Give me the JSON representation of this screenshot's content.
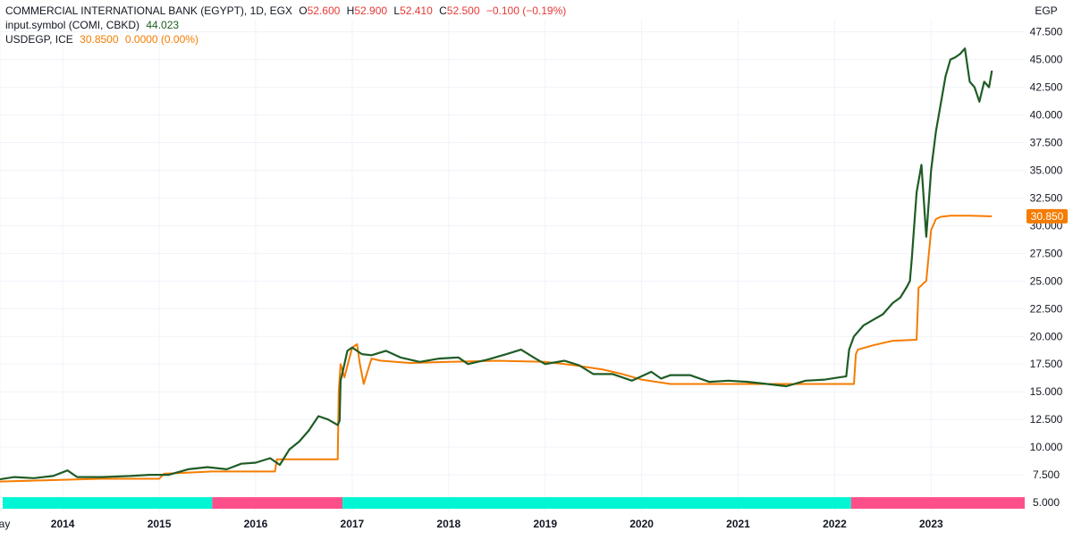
{
  "legend": {
    "line1": {
      "name": "COMMERCIAL INTERNATIONAL BANK (EGYPT), 1D, EGX",
      "o_label": "O",
      "o_value": "52.600",
      "h_label": "H",
      "h_value": "52.900",
      "l_label": "L",
      "l_value": "52.410",
      "c_label": "C",
      "c_value": "52.500",
      "change": "−0.100 (−0.19%)"
    },
    "line2": {
      "name": "input.symbol (COMI, CBKD)",
      "value": "44.023"
    },
    "line3": {
      "name": "USDEGP, ICE",
      "value": "30.8500",
      "change": "0.0000 (0.00%)"
    }
  },
  "price_tag": "30.850",
  "colors": {
    "green_series": "#1f5c25",
    "orange_series": "#f57c00",
    "band_cyan": "#00f5d4",
    "band_pink": "#ff4f8b",
    "tag_bg": "#f57c00"
  },
  "chart_data": {
    "type": "line",
    "unit_label": "EGP",
    "ylim": [
      4.2,
      48.6
    ],
    "xlim": [
      2013.35,
      2023.97
    ],
    "y_ticks": [
      "47.500",
      "45.000",
      "42.500",
      "40.000",
      "37.500",
      "35.000",
      "32.500",
      "30.000",
      "27.500",
      "25.000",
      "22.500",
      "20.000",
      "17.500",
      "15.000",
      "12.500",
      "10.000",
      "7.500",
      "5.000"
    ],
    "x_ticks": [
      {
        "label": "May",
        "x": 2013.35
      },
      {
        "label": "2014",
        "x": 2014.0
      },
      {
        "label": "2015",
        "x": 2015.0
      },
      {
        "label": "2016",
        "x": 2016.0
      },
      {
        "label": "2017",
        "x": 2017.0
      },
      {
        "label": "2018",
        "x": 2018.0
      },
      {
        "label": "2019",
        "x": 2019.0
      },
      {
        "label": "2020",
        "x": 2020.0
      },
      {
        "label": "2021",
        "x": 2021.0
      },
      {
        "label": "2022",
        "x": 2022.0
      },
      {
        "label": "2023",
        "x": 2023.0
      }
    ],
    "series": [
      {
        "name": "input.symbol (COMI, CBKD)",
        "x": [
          2013.35,
          2013.5,
          2013.7,
          2013.9,
          2014.05,
          2014.15,
          2014.4,
          2014.7,
          2014.9,
          2015.1,
          2015.3,
          2015.5,
          2015.7,
          2015.85,
          2016.0,
          2016.15,
          2016.25,
          2016.35,
          2016.45,
          2016.55,
          2016.65,
          2016.75,
          2016.85,
          2016.87,
          2016.88,
          2016.92,
          2016.95,
          2017.0,
          2017.1,
          2017.2,
          2017.35,
          2017.5,
          2017.7,
          2017.9,
          2018.1,
          2018.2,
          2018.4,
          2018.6,
          2018.75,
          2018.9,
          2019.0,
          2019.2,
          2019.35,
          2019.5,
          2019.7,
          2019.9,
          2020.1,
          2020.2,
          2020.3,
          2020.5,
          2020.7,
          2020.9,
          2021.1,
          2021.3,
          2021.5,
          2021.7,
          2021.9,
          2022.05,
          2022.12,
          2022.15,
          2022.2,
          2022.3,
          2022.4,
          2022.5,
          2022.6,
          2022.68,
          2022.75,
          2022.78,
          2022.8,
          2022.85,
          2022.9,
          2022.95,
          2023.0,
          2023.05,
          2023.1,
          2023.15,
          2023.2,
          2023.25,
          2023.3,
          2023.35,
          2023.4,
          2023.45,
          2023.5,
          2023.55,
          2023.6,
          2023.63
        ],
        "y": [
          7.1,
          7.3,
          7.2,
          7.4,
          7.9,
          7.3,
          7.3,
          7.4,
          7.5,
          7.5,
          8.0,
          8.2,
          8.0,
          8.5,
          8.6,
          9.0,
          8.4,
          9.8,
          10.5,
          11.5,
          12.8,
          12.5,
          12.0,
          12.4,
          16.0,
          17.5,
          18.7,
          19.0,
          18.4,
          18.3,
          18.7,
          18.1,
          17.7,
          18.0,
          18.1,
          17.5,
          17.9,
          18.4,
          18.8,
          18.0,
          17.5,
          17.8,
          17.4,
          16.6,
          16.6,
          16.0,
          16.8,
          16.2,
          16.5,
          16.5,
          15.9,
          16.0,
          15.9,
          15.7,
          15.5,
          16.0,
          16.1,
          16.3,
          16.4,
          18.8,
          20.0,
          21.0,
          21.5,
          22.0,
          23.0,
          23.5,
          24.5,
          25.0,
          27.0,
          33.0,
          35.5,
          29.0,
          35.0,
          38.5,
          41.0,
          43.5,
          45.0,
          45.2,
          45.5,
          46.0,
          43.0,
          42.5,
          41.2,
          43.0,
          42.5,
          44.0
        ]
      },
      {
        "name": "USDEGP, ICE",
        "x": [
          2013.35,
          2013.8,
          2014.4,
          2014.6,
          2015.0,
          2015.05,
          2015.55,
          2015.6,
          2016.0,
          2016.2,
          2016.22,
          2016.85,
          2016.86,
          2016.88,
          2016.92,
          2016.97,
          2017.0,
          2017.05,
          2017.08,
          2017.12,
          2017.15,
          2017.2,
          2017.3,
          2017.6,
          2018.0,
          2018.5,
          2019.0,
          2019.3,
          2019.6,
          2019.8,
          2020.0,
          2020.3,
          2020.5,
          2021.0,
          2021.5,
          2022.0,
          2022.2,
          2022.22,
          2022.24,
          2022.4,
          2022.6,
          2022.85,
          2022.87,
          2022.9,
          2022.92,
          2022.95,
          2023.0,
          2023.05,
          2023.1,
          2023.2,
          2023.4,
          2023.6,
          2023.63
        ],
        "y": [
          6.9,
          7.0,
          7.15,
          7.15,
          7.15,
          7.6,
          7.8,
          7.8,
          7.8,
          7.8,
          8.9,
          8.9,
          15.0,
          17.5,
          16.3,
          18.0,
          19.0,
          19.3,
          17.5,
          15.7,
          16.6,
          18.0,
          17.8,
          17.6,
          17.7,
          17.8,
          17.7,
          17.4,
          17.0,
          16.6,
          16.1,
          15.7,
          15.7,
          15.7,
          15.7,
          15.7,
          15.7,
          18.4,
          18.8,
          19.2,
          19.6,
          19.7,
          24.4,
          24.6,
          24.8,
          25.0,
          29.6,
          30.6,
          30.8,
          30.9,
          30.9,
          30.85,
          30.85
        ]
      }
    ],
    "bands": [
      {
        "from": 2013.35,
        "to": 2015.55,
        "color": "cyan"
      },
      {
        "from": 2015.55,
        "to": 2016.9,
        "color": "pink"
      },
      {
        "from": 2016.9,
        "to": 2022.17,
        "color": "cyan"
      },
      {
        "from": 2022.17,
        "to": 2023.97,
        "color": "pink"
      }
    ],
    "band_value": 5.0,
    "grid": true
  }
}
